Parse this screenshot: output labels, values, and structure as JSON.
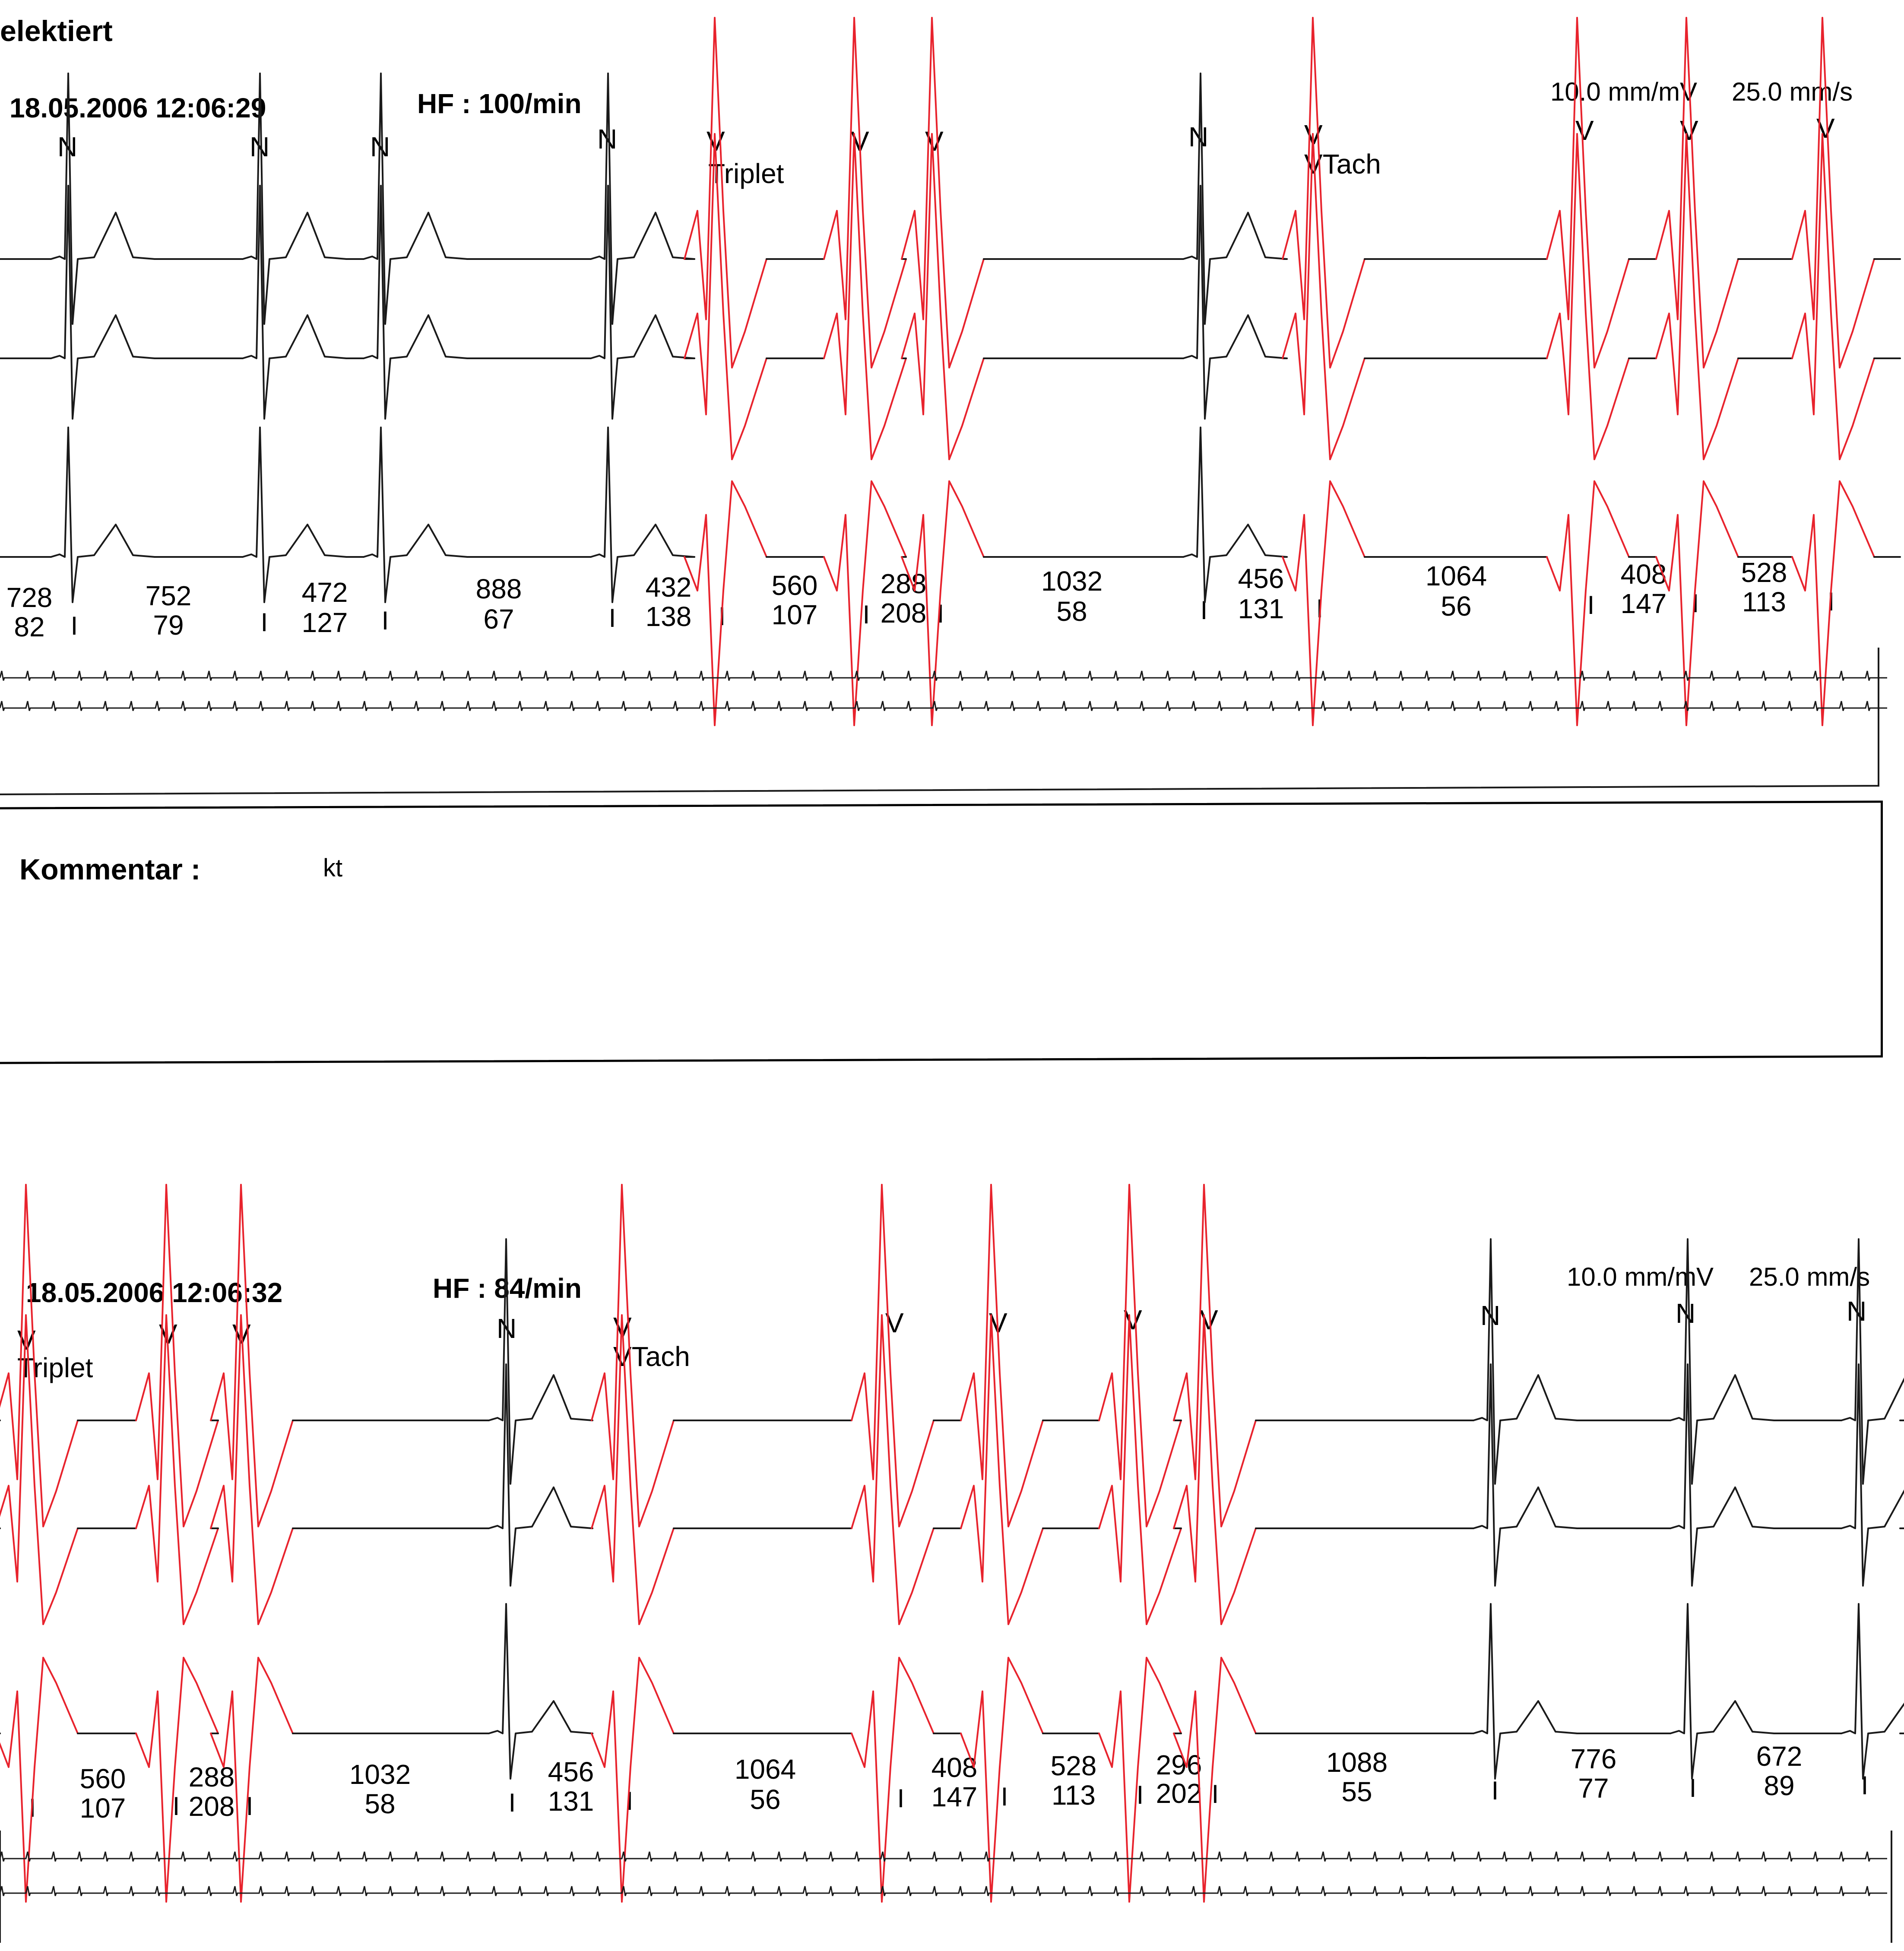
{
  "header_fragment": "elektiert",
  "comment": {
    "label": "Kommentar :",
    "text": "kt"
  },
  "strips": [
    {
      "timestamp": "18.05.2006 12:06:29",
      "hf": "HF : 100/min",
      "scale": "10.0 mm/mV",
      "speed": "25.0 mm/s",
      "beat_labels": [
        {
          "mark": "N",
          "note": "",
          "red": false
        },
        {
          "mark": "N",
          "note": "",
          "red": false
        },
        {
          "mark": "N",
          "note": "",
          "red": false
        },
        {
          "mark": "N",
          "note": "",
          "red": false
        },
        {
          "mark": "V",
          "note": "Triplet",
          "red": true
        },
        {
          "mark": "V",
          "note": "",
          "red": true
        },
        {
          "mark": "V",
          "note": "",
          "red": true
        },
        {
          "mark": "N",
          "note": "",
          "red": false
        },
        {
          "mark": "V",
          "note": "VTach",
          "red": true
        },
        {
          "mark": "V",
          "note": "",
          "red": true
        },
        {
          "mark": "V",
          "note": "",
          "red": true
        },
        {
          "mark": "V",
          "note": "",
          "red": true
        }
      ],
      "intervals": [
        {
          "rr": "728",
          "hr": "82"
        },
        {
          "rr": "752",
          "hr": "79"
        },
        {
          "rr": "472",
          "hr": "127"
        },
        {
          "rr": "888",
          "hr": "67"
        },
        {
          "rr": "432",
          "hr": "138"
        },
        {
          "rr": "560",
          "hr": "107"
        },
        {
          "rr": "288",
          "hr": "208"
        },
        {
          "rr": "1032",
          "hr": "58"
        },
        {
          "rr": "456",
          "hr": "131"
        },
        {
          "rr": "1064",
          "hr": "56"
        },
        {
          "rr": "408",
          "hr": "147"
        },
        {
          "rr": "528",
          "hr": "113"
        }
      ],
      "tick_char": "I"
    },
    {
      "timestamp": "18.05.2006 12:06:32",
      "hf": "HF : 84/min",
      "scale": "10.0 mm/mV",
      "speed": "25.0 mm/s",
      "beat_labels": [
        {
          "mark": "V",
          "note": "Triplet",
          "red": true
        },
        {
          "mark": "V",
          "note": "",
          "red": true
        },
        {
          "mark": "V",
          "note": "",
          "red": true
        },
        {
          "mark": "N",
          "note": "",
          "red": false
        },
        {
          "mark": "V",
          "note": "VTach",
          "red": true
        },
        {
          "mark": "V",
          "note": "",
          "red": true
        },
        {
          "mark": "V",
          "note": "",
          "red": true
        },
        {
          "mark": "V",
          "note": "",
          "red": true
        },
        {
          "mark": "V",
          "note": "",
          "red": true
        },
        {
          "mark": "N",
          "note": "",
          "red": false
        },
        {
          "mark": "N",
          "note": "",
          "red": false
        },
        {
          "mark": "N",
          "note": "",
          "red": false
        }
      ],
      "intervals": [
        {
          "rr": "560",
          "hr": "107"
        },
        {
          "rr": "288",
          "hr": "208"
        },
        {
          "rr": "1032",
          "hr": "58"
        },
        {
          "rr": "456",
          "hr": "131"
        },
        {
          "rr": "1064",
          "hr": "56"
        },
        {
          "rr": "408",
          "hr": "147"
        },
        {
          "rr": "528",
          "hr": "113"
        },
        {
          "rr": "296",
          "hr": "202"
        },
        {
          "rr": "1088",
          "hr": "55"
        },
        {
          "rr": "776",
          "hr": "77"
        },
        {
          "rr": "672",
          "hr": "89"
        }
      ],
      "tick_char": "I"
    }
  ],
  "colors": {
    "trace": "#1a1a1a",
    "ventricular": "#e8232d",
    "frame": "#000000"
  }
}
